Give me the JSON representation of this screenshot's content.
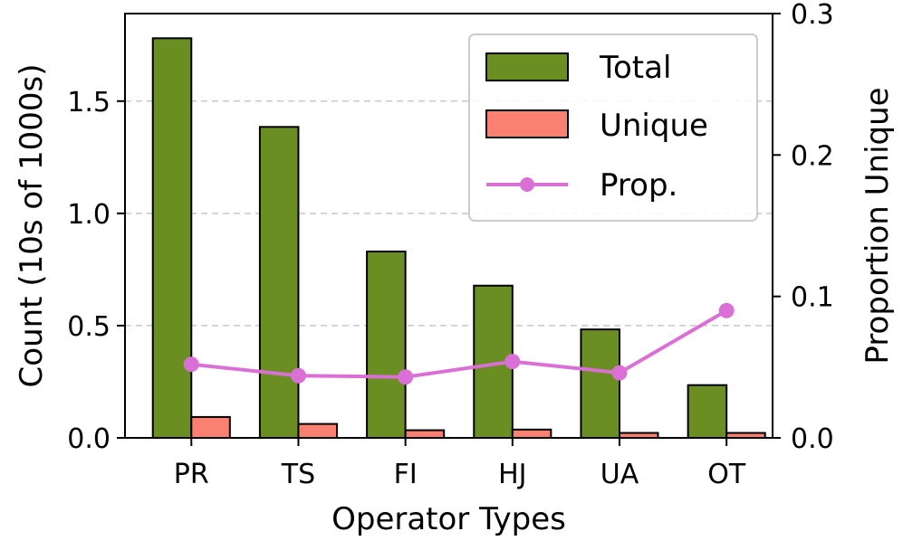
{
  "chart_data": {
    "type": "bar",
    "categories": [
      "PR",
      "TS",
      "FI",
      "HJ",
      "UA",
      "OT"
    ],
    "series": [
      {
        "name": "Total",
        "axis": "left",
        "kind": "bar",
        "color": "#6b8e23",
        "values": [
          1.78,
          1.385,
          0.83,
          0.678,
          0.483,
          0.235
        ]
      },
      {
        "name": "Unique",
        "axis": "left",
        "kind": "bar",
        "color": "#fa8072",
        "values": [
          0.093,
          0.062,
          0.034,
          0.037,
          0.022,
          0.022
        ]
      },
      {
        "name": "Prop.",
        "axis": "right",
        "kind": "line",
        "color": "#da70d6",
        "values": [
          0.052,
          0.044,
          0.043,
          0.054,
          0.046,
          0.09
        ]
      }
    ],
    "xlabel": "Operator Types",
    "ylabel": "Count (10s of 1000s)",
    "y2label": "Proportion Unique",
    "ylim": [
      0,
      1.89
    ],
    "y2lim": [
      0,
      0.3
    ],
    "yticks": [
      "0.0",
      "0.5",
      "1.0",
      "1.5"
    ],
    "y2ticks": [
      "0.0",
      "0.1",
      "0.2",
      "0.3"
    ],
    "grid": "horizontal dashed",
    "legend_position": "top-right",
    "legend": [
      "Total",
      "Unique",
      "Prop."
    ]
  }
}
